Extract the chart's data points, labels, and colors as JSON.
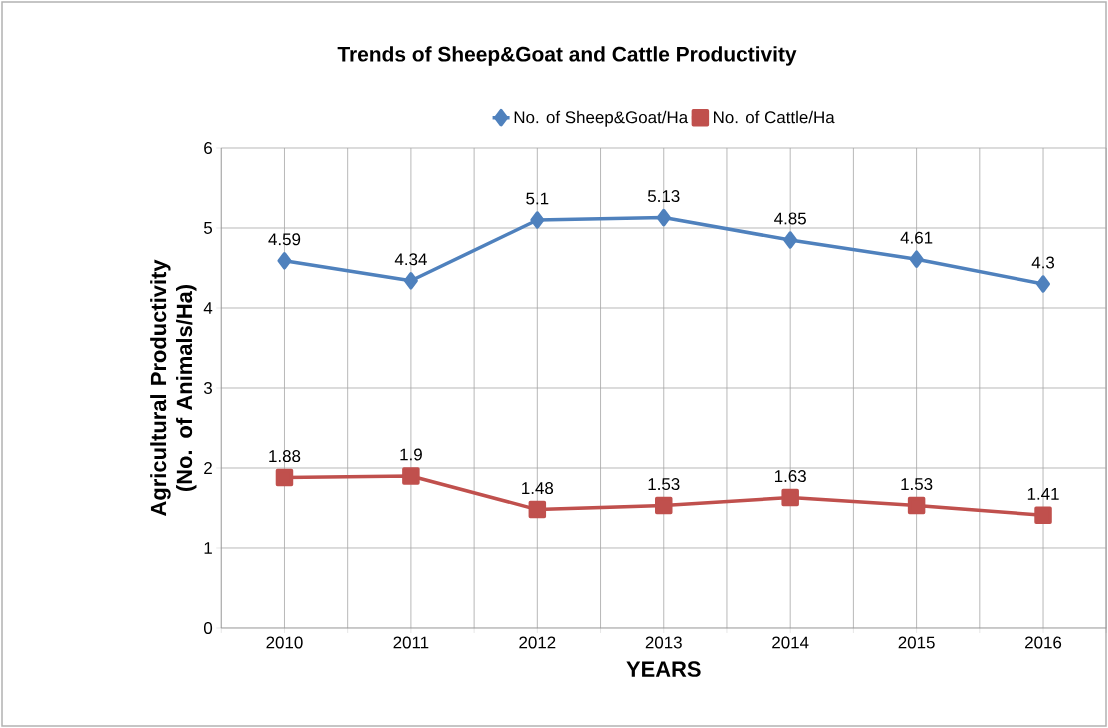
{
  "chart_data": {
    "type": "line",
    "title": "Trends of Sheep&Goat and Cattle Productivity",
    "xlabel": "YEARS",
    "ylabel": "Agricultural Productivity (No. of Animals/Ha)",
    "categories": [
      "2010",
      "2011",
      "2012",
      "2013",
      "2014",
      "2015",
      "2016"
    ],
    "series": [
      {
        "name": "No. of Sheep&Goat/Ha",
        "color": "#4f81bd",
        "marker": "diamond",
        "values": [
          4.59,
          4.34,
          5.1,
          5.13,
          4.85,
          4.61,
          4.3
        ]
      },
      {
        "name": "No. of Cattle/Ha",
        "color": "#c0504d",
        "marker": "square",
        "values": [
          1.88,
          1.9,
          1.48,
          1.53,
          1.63,
          1.53,
          1.41
        ]
      }
    ],
    "ylim": [
      0,
      6
    ],
    "yticks": [
      0,
      1,
      2,
      3,
      4,
      5,
      6
    ],
    "grid": true,
    "legend": "top",
    "data_labels": true,
    "line_style": "solid"
  }
}
